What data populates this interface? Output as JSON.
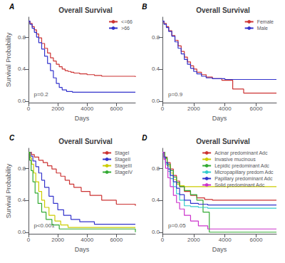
{
  "chart_data": [
    {
      "type": "step",
      "title": "Overall Survival",
      "panel_label": "A",
      "annotation": "p=0.2",
      "xlabel": "Days",
      "ylabel": "Survival Probability",
      "xlim": [
        0,
        7300
      ],
      "ylim": [
        -0.02,
        1.05
      ],
      "xticks": [
        0,
        2000,
        4000,
        6000
      ],
      "yticks": [
        {
          "value": 0.0,
          "label": "0.0"
        },
        0.4,
        0.8
      ],
      "grid": false,
      "legend": "upper right",
      "series": [
        {
          "name": "<=66",
          "color": "#CC3333",
          "x": [
            0,
            100,
            250,
            400,
            550,
            700,
            900,
            1100,
            1300,
            1500,
            1700,
            1900,
            2100,
            2300,
            2500,
            2700,
            2900,
            3100,
            3500,
            4000,
            4500,
            5000,
            7300
          ],
          "values": [
            1.0,
            0.97,
            0.93,
            0.89,
            0.84,
            0.79,
            0.72,
            0.66,
            0.6,
            0.54,
            0.5,
            0.46,
            0.43,
            0.4,
            0.38,
            0.37,
            0.36,
            0.35,
            0.34,
            0.33,
            0.32,
            0.31,
            0.3
          ]
        },
        {
          "name": ">66",
          "color": "#3333CC",
          "x": [
            0,
            100,
            250,
            400,
            550,
            700,
            900,
            1100,
            1300,
            1500,
            1700,
            1900,
            2100,
            2300,
            2600,
            3000,
            7300
          ],
          "values": [
            1.0,
            0.96,
            0.91,
            0.86,
            0.8,
            0.73,
            0.65,
            0.56,
            0.47,
            0.38,
            0.29,
            0.22,
            0.17,
            0.14,
            0.12,
            0.11,
            0.11
          ]
        }
      ]
    },
    {
      "type": "step",
      "title": "Overall Survival",
      "panel_label": "B",
      "annotation": "p=0.9",
      "xlabel": "Days",
      "xlim": [
        0,
        7300
      ],
      "ylim": [
        -0.02,
        1.05
      ],
      "xticks": [
        0,
        2000,
        4000,
        6000
      ],
      "yticks": [
        {
          "value": 0.0,
          "label": "0.0"
        },
        0.4,
        0.8
      ],
      "grid": false,
      "legend": "upper right",
      "series": [
        {
          "name": "Female",
          "color": "#CC3333",
          "x": [
            0,
            100,
            250,
            400,
            600,
            800,
            1000,
            1200,
            1400,
            1600,
            1800,
            2000,
            2200,
            2500,
            2800,
            3200,
            3800,
            4500,
            5200,
            7300
          ],
          "values": [
            1.0,
            0.97,
            0.93,
            0.88,
            0.82,
            0.76,
            0.69,
            0.62,
            0.55,
            0.49,
            0.44,
            0.4,
            0.36,
            0.33,
            0.3,
            0.28,
            0.26,
            0.15,
            0.1,
            0.1
          ]
        },
        {
          "name": "Male",
          "color": "#3333CC",
          "x": [
            0,
            100,
            250,
            400,
            600,
            800,
            1000,
            1200,
            1400,
            1600,
            1800,
            2000,
            2200,
            2500,
            2800,
            3200,
            4000,
            7300
          ],
          "values": [
            1.0,
            0.96,
            0.92,
            0.87,
            0.81,
            0.74,
            0.66,
            0.59,
            0.52,
            0.46,
            0.41,
            0.37,
            0.34,
            0.31,
            0.29,
            0.28,
            0.27,
            0.27
          ]
        }
      ]
    },
    {
      "type": "step",
      "title": "Overall Survival",
      "panel_label": "C",
      "annotation": "p<0.001",
      "xlabel": "Days",
      "ylabel": "Survival Probability",
      "xlim": [
        0,
        7300
      ],
      "ylim": [
        -0.02,
        1.05
      ],
      "xticks": [
        0,
        2000,
        4000,
        6000
      ],
      "yticks": [
        {
          "value": 0.0,
          "label": "0.0"
        },
        0.4,
        0.8
      ],
      "grid": false,
      "legend": "upper right",
      "series": [
        {
          "name": "StageI",
          "color": "#CC3333",
          "x": [
            0,
            200,
            400,
            700,
            1000,
            1300,
            1600,
            1900,
            2200,
            2500,
            2800,
            3100,
            3600,
            4200,
            5000,
            6000,
            7300
          ],
          "values": [
            1.0,
            0.97,
            0.94,
            0.9,
            0.87,
            0.83,
            0.79,
            0.74,
            0.7,
            0.65,
            0.6,
            0.56,
            0.51,
            0.46,
            0.4,
            0.35,
            0.33
          ]
        },
        {
          "name": "StageII",
          "color": "#3333CC",
          "x": [
            0,
            150,
            300,
            500,
            700,
            900,
            1100,
            1400,
            1700,
            2000,
            2400,
            2900,
            3500,
            4500,
            7300
          ],
          "values": [
            1.0,
            0.95,
            0.89,
            0.82,
            0.74,
            0.65,
            0.56,
            0.45,
            0.36,
            0.28,
            0.21,
            0.16,
            0.13,
            0.1,
            0.1
          ]
        },
        {
          "name": "StageIII",
          "color": "#CCCC00",
          "x": [
            0,
            100,
            200,
            350,
            500,
            700,
            900,
            1100,
            1400,
            1800,
            2200,
            2700,
            7300
          ],
          "values": [
            1.0,
            0.93,
            0.85,
            0.74,
            0.63,
            0.51,
            0.4,
            0.31,
            0.21,
            0.14,
            0.09,
            0.06,
            0.06
          ]
        },
        {
          "name": "StageIV",
          "color": "#33AA33",
          "x": [
            0,
            80,
            180,
            300,
            450,
            650,
            900,
            1200,
            1600,
            2100,
            7300
          ],
          "values": [
            1.0,
            0.9,
            0.77,
            0.63,
            0.49,
            0.36,
            0.25,
            0.16,
            0.09,
            0.04,
            0.0
          ]
        }
      ]
    },
    {
      "type": "step",
      "title": "Overall Survival",
      "panel_label": "D",
      "annotation": "p=0.05",
      "xlabel": "Days",
      "xlim": [
        0,
        7300
      ],
      "ylim": [
        -0.02,
        1.05
      ],
      "xticks": [
        0,
        2000,
        4000,
        6000
      ],
      "yticks": [
        {
          "value": 0.0,
          "label": "0.0"
        },
        0.4,
        0.8
      ],
      "grid": false,
      "legend": "upper right",
      "series": [
        {
          "name": "Acinar predominant Adc",
          "color": "#CC3333",
          "x": [
            0,
            150,
            300,
            500,
            700,
            900,
            1100,
            1400,
            1800,
            2200,
            2700,
            3200,
            7300
          ],
          "values": [
            1.0,
            0.94,
            0.87,
            0.79,
            0.71,
            0.64,
            0.57,
            0.51,
            0.46,
            0.43,
            0.41,
            0.4,
            0.4
          ]
        },
        {
          "name": "Invasive mucinous",
          "color": "#CCCC00",
          "x": [
            0,
            150,
            300,
            500,
            700,
            900,
            1100,
            1400,
            1800,
            2400,
            7300
          ],
          "values": [
            1.0,
            0.92,
            0.83,
            0.74,
            0.66,
            0.6,
            0.58,
            0.57,
            0.57,
            0.57,
            0.57
          ]
        },
        {
          "name": "Lepidic predominant Adc",
          "color": "#33AA33",
          "x": [
            0,
            150,
            300,
            500,
            700,
            900,
            1100,
            1400,
            1800,
            2200,
            2600,
            3000,
            7300
          ],
          "values": [
            1.0,
            0.93,
            0.85,
            0.77,
            0.69,
            0.62,
            0.57,
            0.52,
            0.47,
            0.4,
            0.25,
            0.0,
            0.0
          ]
        },
        {
          "name": "Micropapillary predom Adc",
          "color": "#33CCCC",
          "x": [
            0,
            100,
            200,
            350,
            500,
            700,
            900,
            1100,
            1400,
            1800,
            2300,
            2900,
            7300
          ],
          "values": [
            1.0,
            0.93,
            0.85,
            0.76,
            0.67,
            0.57,
            0.48,
            0.4,
            0.33,
            0.32,
            0.31,
            0.3,
            0.3
          ]
        },
        {
          "name": "Papillary predominant Adc",
          "color": "#3333CC",
          "x": [
            0,
            100,
            200,
            350,
            500,
            700,
            900,
            1100,
            1400,
            1800,
            2300,
            2900,
            7300
          ],
          "values": [
            1.0,
            0.94,
            0.87,
            0.79,
            0.71,
            0.63,
            0.55,
            0.47,
            0.4,
            0.36,
            0.35,
            0.34,
            0.34
          ]
        },
        {
          "name": "Solid predominant Adc",
          "color": "#CC33CC",
          "x": [
            0,
            100,
            200,
            350,
            500,
            700,
            900,
            1100,
            1400,
            1800,
            2300,
            2900,
            7300
          ],
          "values": [
            1.0,
            0.91,
            0.8,
            0.68,
            0.57,
            0.46,
            0.37,
            0.29,
            0.21,
            0.14,
            0.08,
            0.04,
            0.04
          ]
        }
      ]
    }
  ]
}
